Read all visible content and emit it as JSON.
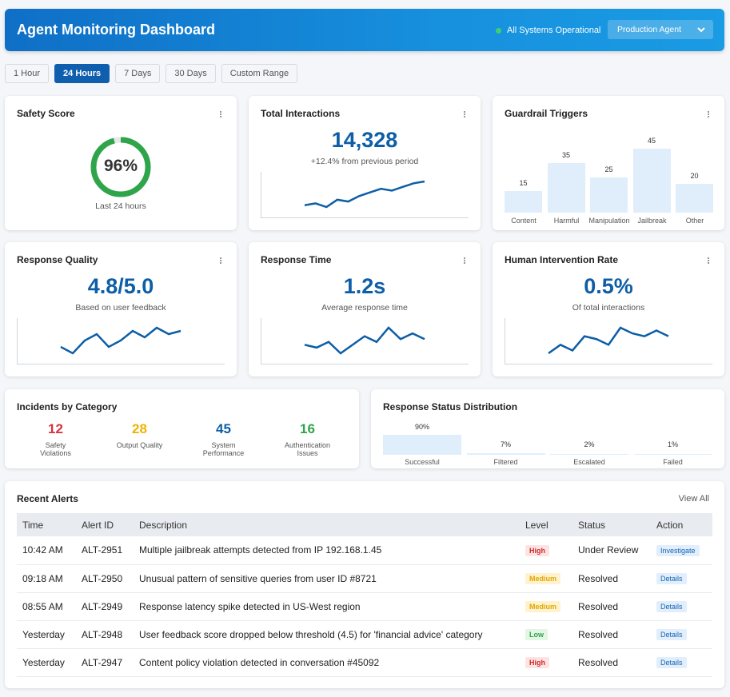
{
  "header": {
    "title": "Agent Monitoring Dashboard",
    "status_text": "All Systems Operational",
    "agent_select": "Production Agent",
    "status_color": "#3bd16f"
  },
  "time_tabs": [
    "1 Hour",
    "24 Hours",
    "7 Days",
    "30 Days",
    "Custom Range"
  ],
  "active_tab": "24 Hours",
  "safety": {
    "title": "Safety Score",
    "value": "96%",
    "percent": 96,
    "caption": "Last 24 hours"
  },
  "interactions": {
    "title": "Total Interactions",
    "value": "14,328",
    "caption": "+12.4% from previous period",
    "trend": [
      3,
      4,
      2,
      6,
      5,
      8,
      10,
      12,
      11,
      13,
      15,
      16
    ]
  },
  "guardrails": {
    "title": "Guardrail Triggers",
    "categories": [
      "Content",
      "Harmful",
      "Manipulation",
      "Jailbreak",
      "Other"
    ],
    "values": [
      15,
      35,
      25,
      45,
      20
    ]
  },
  "quality": {
    "title": "Response Quality",
    "value": "4.8/5.0",
    "caption": "Based on user feedback",
    "trend": [
      6,
      5,
      7,
      8,
      6,
      7,
      8.5,
      7.5,
      9,
      8,
      8.5
    ]
  },
  "response_time": {
    "title": "Response Time",
    "value": "1.2s",
    "caption": "Average response time",
    "trend": [
      6,
      5,
      7,
      3,
      6,
      9,
      7,
      12,
      8,
      10,
      8
    ]
  },
  "intervention": {
    "title": "Human Intervention Rate",
    "value": "0.5%",
    "caption": "Of total interactions",
    "trend": [
      2,
      5,
      3,
      8,
      7,
      5,
      11,
      9,
      8,
      10,
      8
    ]
  },
  "incidents": {
    "title": "Incidents by Category",
    "items": [
      {
        "count": "12",
        "label": "Safety Violations",
        "color": "#d6343d"
      },
      {
        "count": "28",
        "label": "Output Quality",
        "color": "#f0b200"
      },
      {
        "count": "45",
        "label": "System Performance",
        "color": "#0d5ea6"
      },
      {
        "count": "16",
        "label": "Authentication Issues",
        "color": "#2ea54a"
      }
    ]
  },
  "response_status": {
    "title": "Response Status Distribution",
    "items": [
      {
        "pct": "90%",
        "value": 90,
        "label": "Successful"
      },
      {
        "pct": "7%",
        "value": 7,
        "label": "Filtered"
      },
      {
        "pct": "2%",
        "value": 2,
        "label": "Escalated"
      },
      {
        "pct": "1%",
        "value": 1,
        "label": "Failed"
      }
    ]
  },
  "alerts": {
    "title": "Recent Alerts",
    "view_all": "View All",
    "columns": [
      "Time",
      "Alert ID",
      "Description",
      "Level",
      "Status",
      "Action"
    ],
    "rows": [
      {
        "time": "10:42 AM",
        "id": "ALT-2951",
        "description": "Multiple jailbreak attempts detected from IP 192.168.1.45",
        "level": "High",
        "status": "Under Review",
        "action": "Investigate"
      },
      {
        "time": "09:18 AM",
        "id": "ALT-2950",
        "description": "Unusual pattern of sensitive queries from user ID #8721",
        "level": "Medium",
        "status": "Resolved",
        "action": "Details"
      },
      {
        "time": "08:55 AM",
        "id": "ALT-2949",
        "description": "Response latency spike detected in US-West region",
        "level": "Medium",
        "status": "Resolved",
        "action": "Details"
      },
      {
        "time": "Yesterday",
        "id": "ALT-2948",
        "description": "User feedback score dropped below threshold (4.5) for 'financial advice' category",
        "level": "Low",
        "status": "Resolved",
        "action": "Details"
      },
      {
        "time": "Yesterday",
        "id": "ALT-2947",
        "description": "Content policy violation detected in conversation #45092",
        "level": "High",
        "status": "Resolved",
        "action": "Details"
      }
    ]
  }
}
